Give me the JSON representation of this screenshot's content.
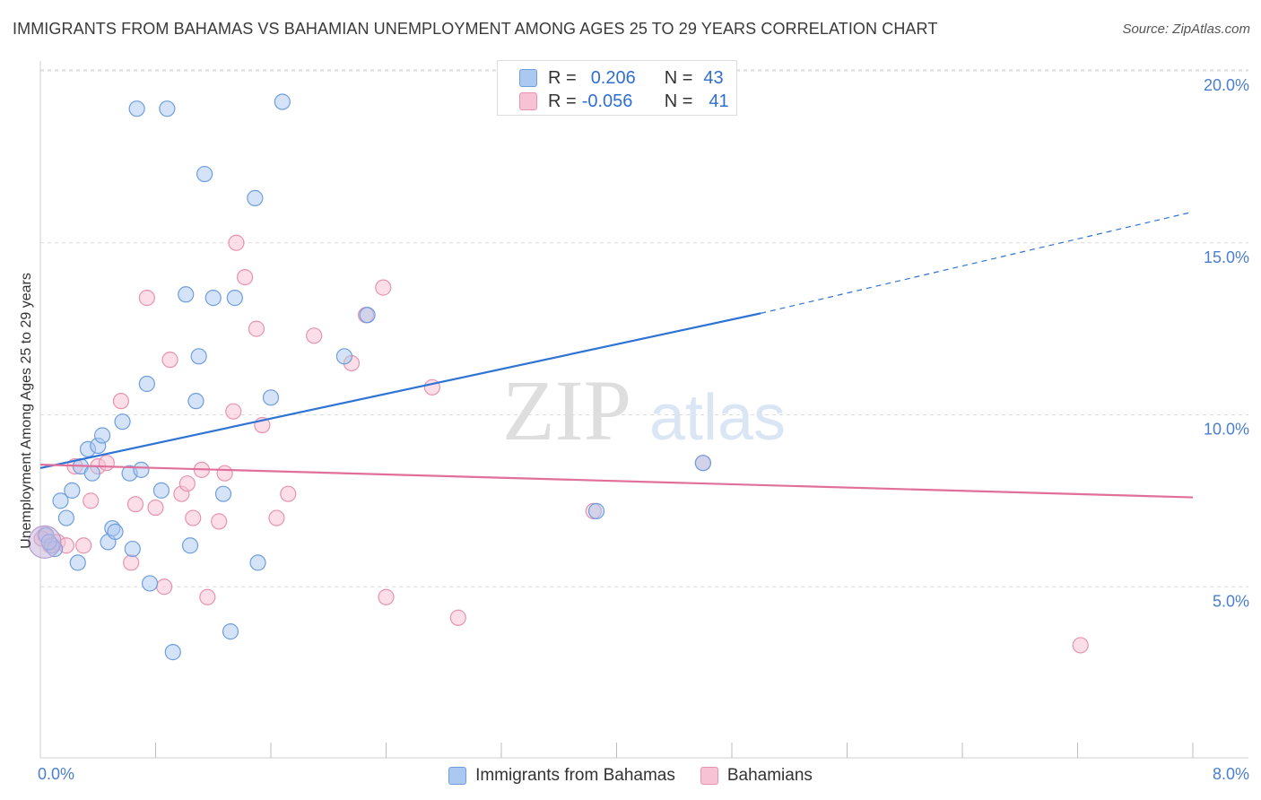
{
  "title": "IMMIGRANTS FROM BAHAMAS VS BAHAMIAN UNEMPLOYMENT AMONG AGES 25 TO 29 YEARS CORRELATION CHART",
  "source": "Source: ZipAtlas.com",
  "watermark": {
    "zip": "ZIP",
    "atlas": "atlas"
  },
  "colors": {
    "blue_fill": "#aac8f0",
    "blue_stroke": "#6f9ede",
    "blue_line": "#2f73d4",
    "pink_fill": "#f7c3d4",
    "pink_stroke": "#e893b0",
    "pink_line": "#e0709a",
    "grid": "#dcdcdc",
    "tick_text": "#4a7fd0"
  },
  "legend_top": {
    "rows": [
      {
        "r_label": "R =",
        "r_value": "0.206",
        "n_label": "N =",
        "n_value": "43"
      },
      {
        "r_label": "R =",
        "r_value": "-0.056",
        "n_label": "N =",
        "n_value": "41"
      }
    ]
  },
  "legend_bottom": {
    "items": [
      "Immigrants from Bahamas",
      "Bahamians"
    ]
  },
  "chart_data": {
    "type": "scatter",
    "title": "IMMIGRANTS FROM BAHAMAS VS BAHAMIAN UNEMPLOYMENT AMONG AGES 25 TO 29 YEARS CORRELATION CHART",
    "xlabel": "",
    "ylabel": "Unemployment Among Ages 25 to 29 years",
    "xlim": [
      0,
      8
    ],
    "ylim": [
      0,
      20.5
    ],
    "x_tick_labels": [
      {
        "value": 0,
        "label": "0.0%"
      },
      {
        "value": 8,
        "label": "8.0%"
      }
    ],
    "x_minor_ticks": [
      0.8,
      1.6,
      2.4,
      3.2,
      4.0,
      4.8,
      5.6,
      6.4,
      7.2,
      8.0
    ],
    "y_ticks": [
      {
        "value": 5,
        "label": "5.0%"
      },
      {
        "value": 10,
        "label": "10.0%"
      },
      {
        "value": 15,
        "label": "15.0%"
      },
      {
        "value": 20,
        "label": "20.0%"
      }
    ],
    "grid": true,
    "legend_position": "bottom",
    "series": [
      {
        "name": "Immigrants from Bahamas",
        "color": "blue",
        "R": 0.206,
        "N": 43,
        "trend": {
          "x0": 0.0,
          "y0": 8.45,
          "x1": 5.0,
          "y1": 12.95,
          "dashed_to_x": 8.0,
          "dashed_to_y": 15.9
        },
        "points": [
          [
            0.04,
            6.5
          ],
          [
            0.08,
            6.2
          ],
          [
            0.1,
            6.1
          ],
          [
            0.14,
            7.5
          ],
          [
            0.18,
            7.0
          ],
          [
            0.22,
            7.8
          ],
          [
            0.26,
            5.7
          ],
          [
            0.28,
            8.5
          ],
          [
            0.33,
            9.0
          ],
          [
            0.36,
            8.3
          ],
          [
            0.4,
            9.1
          ],
          [
            0.43,
            9.4
          ],
          [
            0.47,
            6.3
          ],
          [
            0.5,
            6.7
          ],
          [
            0.52,
            6.6
          ],
          [
            0.57,
            9.8
          ],
          [
            0.62,
            8.3
          ],
          [
            0.64,
            6.1
          ],
          [
            0.67,
            18.9
          ],
          [
            0.7,
            8.4
          ],
          [
            0.74,
            10.9
          ],
          [
            0.76,
            5.1
          ],
          [
            0.84,
            7.8
          ],
          [
            0.88,
            18.9
          ],
          [
            1.01,
            13.5
          ],
          [
            1.04,
            6.2
          ],
          [
            1.08,
            10.4
          ],
          [
            1.1,
            11.7
          ],
          [
            1.14,
            17.0
          ],
          [
            1.2,
            13.4
          ],
          [
            1.27,
            7.7
          ],
          [
            1.32,
            3.7
          ],
          [
            1.35,
            13.4
          ],
          [
            1.49,
            16.3
          ],
          [
            1.51,
            5.7
          ],
          [
            1.6,
            10.5
          ],
          [
            1.68,
            19.1
          ],
          [
            2.11,
            11.7
          ],
          [
            2.27,
            12.9
          ],
          [
            3.86,
            7.2
          ],
          [
            4.6,
            8.6
          ],
          [
            0.92,
            3.1
          ],
          [
            0.06,
            6.3
          ]
        ]
      },
      {
        "name": "Bahamians",
        "color": "pink",
        "R": -0.056,
        "N": 41,
        "trend": {
          "x0": 0.0,
          "y0": 8.55,
          "x1": 8.0,
          "y1": 7.6
        },
        "points": [
          [
            0.03,
            6.5
          ],
          [
            0.07,
            6.2
          ],
          [
            0.12,
            6.3
          ],
          [
            0.18,
            6.2
          ],
          [
            0.24,
            8.5
          ],
          [
            0.3,
            6.2
          ],
          [
            0.35,
            7.5
          ],
          [
            0.4,
            8.5
          ],
          [
            0.46,
            8.6
          ],
          [
            0.56,
            10.4
          ],
          [
            0.63,
            5.7
          ],
          [
            0.66,
            7.4
          ],
          [
            0.74,
            13.4
          ],
          [
            0.8,
            7.3
          ],
          [
            0.86,
            5.0
          ],
          [
            0.9,
            11.6
          ],
          [
            0.98,
            7.7
          ],
          [
            1.02,
            8.0
          ],
          [
            1.06,
            7.0
          ],
          [
            1.12,
            8.4
          ],
          [
            1.16,
            4.7
          ],
          [
            1.24,
            6.9
          ],
          [
            1.28,
            8.3
          ],
          [
            1.34,
            10.1
          ],
          [
            1.36,
            15.0
          ],
          [
            1.42,
            14.0
          ],
          [
            1.5,
            12.5
          ],
          [
            1.54,
            9.7
          ],
          [
            1.64,
            7.0
          ],
          [
            1.72,
            7.7
          ],
          [
            1.9,
            12.3
          ],
          [
            2.16,
            11.5
          ],
          [
            2.26,
            12.9
          ],
          [
            2.38,
            13.7
          ],
          [
            2.4,
            4.7
          ],
          [
            2.72,
            10.8
          ],
          [
            2.9,
            4.1
          ],
          [
            3.84,
            7.2
          ],
          [
            4.6,
            8.6
          ],
          [
            7.22,
            3.3
          ],
          [
            0.01,
            6.4
          ]
        ]
      }
    ]
  }
}
